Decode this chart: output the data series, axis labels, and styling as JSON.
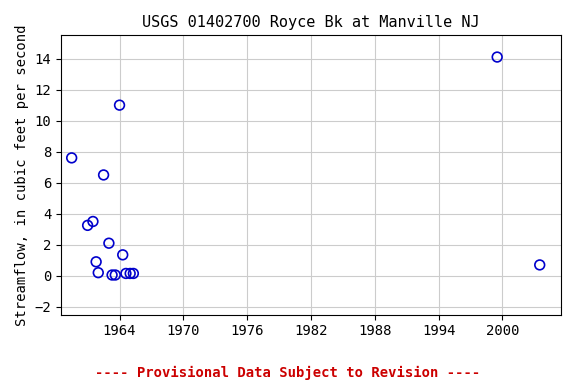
{
  "title": "USGS 01402700 Royce Bk at Manville NJ",
  "xlabel": "",
  "ylabel": "Streamflow, in cubic feet per second",
  "xlim": [
    1958.5,
    2005.5
  ],
  "ylim": [
    -2.5,
    15.5
  ],
  "xticks": [
    1964,
    1970,
    1976,
    1982,
    1988,
    1994,
    2000
  ],
  "yticks": [
    -2,
    0,
    2,
    4,
    6,
    8,
    10,
    12,
    14
  ],
  "x_data": [
    1959.5,
    1961.0,
    1961.5,
    1961.8,
    1962.0,
    1962.5,
    1963.0,
    1963.3,
    1963.6,
    1964.0,
    1964.3,
    1964.6,
    1965.0,
    1965.3,
    1999.5,
    2003.5
  ],
  "y_data": [
    7.6,
    3.25,
    3.5,
    0.9,
    0.2,
    6.5,
    2.1,
    0.05,
    0.05,
    11.0,
    1.35,
    0.15,
    0.15,
    0.15,
    14.1,
    0.7
  ],
  "marker_color": "#0000cc",
  "marker_size": 7,
  "grid_color": "#cccccc",
  "background_color": "#ffffff",
  "footnote_text": "---- Provisional Data Subject to Revision ----",
  "footnote_color": "#cc0000",
  "title_fontsize": 11,
  "axis_fontsize": 10,
  "tick_fontsize": 10,
  "footnote_fontsize": 10
}
